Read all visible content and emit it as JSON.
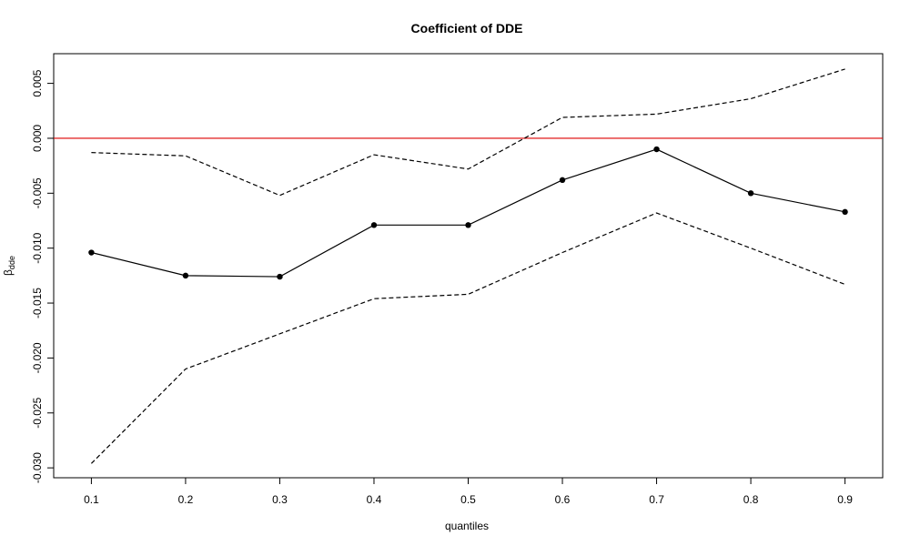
{
  "chart_data": {
    "type": "line",
    "title": "Coefficient of DDE",
    "xlabel": "quantiles",
    "ylabel": {
      "symbol": "β",
      "subscript": "dde"
    },
    "x": [
      0.1,
      0.2,
      0.3,
      0.4,
      0.5,
      0.6,
      0.7,
      0.8,
      0.9
    ],
    "x_tick_labels": [
      "0.1",
      "0.2",
      "0.3",
      "0.4",
      "0.5",
      "0.6",
      "0.7",
      "0.8",
      "0.9"
    ],
    "y_ticks": [
      0.005,
      0.0,
      -0.005,
      -0.01,
      -0.015,
      -0.02,
      -0.025,
      -0.03
    ],
    "y_tick_labels": [
      "0.005",
      "0.000",
      "-0.005",
      "-0.010",
      "-0.015",
      "-0.020",
      "-0.025",
      "-0.030"
    ],
    "xlim": [
      0.06,
      0.94
    ],
    "ylim": [
      -0.0309,
      0.0077
    ],
    "grid": false,
    "reference_line": {
      "y": 0.0,
      "color": "#dd0000"
    },
    "series": [
      {
        "style": "solid-with-points",
        "color": "#000000",
        "values": [
          -0.0104,
          -0.0125,
          -0.0126,
          -0.0079,
          -0.0079,
          -0.0038,
          -0.001,
          -0.005,
          -0.0067
        ]
      },
      {
        "style": "dashed",
        "color": "#000000",
        "values": [
          -0.0013,
          -0.0016,
          -0.0052,
          -0.0015,
          -0.0028,
          0.0019,
          0.0022,
          0.0036,
          0.0063
        ]
      },
      {
        "style": "dashed",
        "color": "#000000",
        "values": [
          -0.0296,
          -0.021,
          -0.0178,
          -0.0146,
          -0.0142,
          -0.0104,
          -0.0068,
          -0.01,
          -0.0133
        ]
      }
    ]
  }
}
